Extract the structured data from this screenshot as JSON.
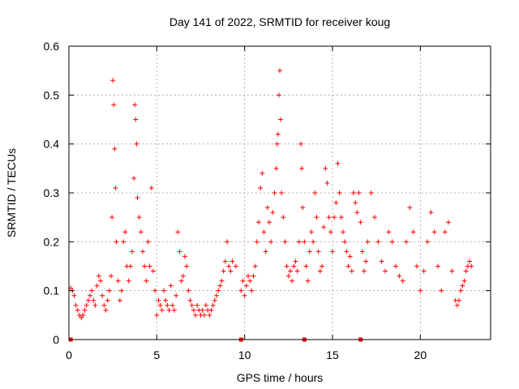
{
  "chart_data": {
    "type": "scatter",
    "title": "Day 141 of 2022, SRMTID for receiver koug",
    "xlabel": "GPS time / hours",
    "ylabel": "SRMTID / TECUs",
    "xlim": [
      0,
      24
    ],
    "ylim": [
      0,
      0.6
    ],
    "xticks": [
      "0",
      "5",
      "10",
      "15",
      "20"
    ],
    "yticks": [
      "0",
      "0.1",
      "0.2",
      "0.3",
      "0.4",
      "0.5",
      "0.6"
    ],
    "grid": true,
    "marker_color": "#ff0000",
    "series": [
      {
        "name": "SRMTID",
        "values": [
          [
            0.1,
            0.105
          ],
          [
            0.2,
            0.1
          ],
          [
            0.3,
            0.09
          ],
          [
            0.4,
            0.07
          ],
          [
            0.5,
            0.06
          ],
          [
            0.6,
            0.05
          ],
          [
            0.7,
            0.045
          ],
          [
            0.8,
            0.05
          ],
          [
            0.9,
            0.06
          ],
          [
            1.0,
            0.07
          ],
          [
            1.1,
            0.08
          ],
          [
            1.2,
            0.09
          ],
          [
            1.3,
            0.1
          ],
          [
            1.4,
            0.08
          ],
          [
            1.5,
            0.07
          ],
          [
            1.6,
            0.11
          ],
          [
            1.7,
            0.13
          ],
          [
            1.8,
            0.12
          ],
          [
            1.9,
            0.09
          ],
          [
            2.0,
            0.07
          ],
          [
            2.1,
            0.06
          ],
          [
            2.2,
            0.08
          ],
          [
            2.3,
            0.1
          ],
          [
            2.4,
            0.13
          ],
          [
            2.45,
            0.25
          ],
          [
            2.5,
            0.53
          ],
          [
            2.55,
            0.48
          ],
          [
            2.6,
            0.39
          ],
          [
            2.65,
            0.31
          ],
          [
            2.7,
            0.2
          ],
          [
            2.8,
            0.12
          ],
          [
            2.9,
            0.08
          ],
          [
            3.0,
            0.1
          ],
          [
            3.1,
            0.2
          ],
          [
            3.2,
            0.22
          ],
          [
            3.3,
            0.15
          ],
          [
            3.4,
            0.12
          ],
          [
            3.5,
            0.15
          ],
          [
            3.6,
            0.18
          ],
          [
            3.7,
            0.33
          ],
          [
            3.75,
            0.48
          ],
          [
            3.8,
            0.45
          ],
          [
            3.85,
            0.4
          ],
          [
            3.9,
            0.29
          ],
          [
            4.0,
            0.25
          ],
          [
            4.1,
            0.22
          ],
          [
            4.2,
            0.18
          ],
          [
            4.3,
            0.15
          ],
          [
            4.4,
            0.12
          ],
          [
            4.5,
            0.2
          ],
          [
            4.6,
            0.15
          ],
          [
            4.7,
            0.31
          ],
          [
            4.8,
            0.14
          ],
          [
            4.9,
            0.1
          ],
          [
            5.0,
            0.05
          ],
          [
            5.1,
            0.08
          ],
          [
            5.2,
            0.07
          ],
          [
            5.3,
            0.06
          ],
          [
            5.4,
            0.1
          ],
          [
            5.5,
            0.08
          ],
          [
            5.6,
            0.07
          ],
          [
            5.7,
            0.06
          ],
          [
            5.8,
            0.11
          ],
          [
            5.9,
            0.07
          ],
          [
            6.0,
            0.06
          ],
          [
            6.1,
            0.09
          ],
          [
            6.2,
            0.22
          ],
          [
            6.3,
            0.18
          ],
          [
            6.4,
            0.12
          ],
          [
            6.5,
            0.13
          ],
          [
            6.6,
            0.17
          ],
          [
            6.7,
            0.15
          ],
          [
            6.8,
            0.1
          ],
          [
            6.9,
            0.08
          ],
          [
            7.0,
            0.07
          ],
          [
            7.1,
            0.06
          ],
          [
            7.2,
            0.05
          ],
          [
            7.3,
            0.07
          ],
          [
            7.4,
            0.06
          ],
          [
            7.5,
            0.05
          ],
          [
            7.6,
            0.06
          ],
          [
            7.7,
            0.05
          ],
          [
            7.8,
            0.07
          ],
          [
            7.9,
            0.06
          ],
          [
            8.0,
            0.05
          ],
          [
            8.1,
            0.06
          ],
          [
            8.2,
            0.07
          ],
          [
            8.3,
            0.08
          ],
          [
            8.4,
            0.09
          ],
          [
            8.5,
            0.1
          ],
          [
            8.6,
            0.11
          ],
          [
            8.7,
            0.12
          ],
          [
            8.8,
            0.14
          ],
          [
            8.9,
            0.16
          ],
          [
            9.0,
            0.2
          ],
          [
            9.1,
            0.15
          ],
          [
            9.2,
            0.14
          ],
          [
            9.3,
            0.16
          ],
          [
            9.5,
            0.15
          ],
          [
            9.8,
            0.1
          ],
          [
            9.9,
            0.12
          ],
          [
            10.0,
            0.09
          ],
          [
            10.1,
            0.11
          ],
          [
            10.2,
            0.13
          ],
          [
            10.3,
            0.12
          ],
          [
            10.4,
            0.1
          ],
          [
            10.5,
            0.13
          ],
          [
            10.6,
            0.15
          ],
          [
            10.7,
            0.2
          ],
          [
            10.8,
            0.24
          ],
          [
            10.9,
            0.31
          ],
          [
            11.0,
            0.34
          ],
          [
            11.1,
            0.22
          ],
          [
            11.2,
            0.18
          ],
          [
            11.3,
            0.27
          ],
          [
            11.4,
            0.24
          ],
          [
            11.5,
            0.2
          ],
          [
            11.6,
            0.26
          ],
          [
            11.7,
            0.3
          ],
          [
            11.8,
            0.35
          ],
          [
            11.85,
            0.4
          ],
          [
            11.9,
            0.42
          ],
          [
            11.95,
            0.5
          ],
          [
            12.0,
            0.55
          ],
          [
            12.05,
            0.45
          ],
          [
            12.1,
            0.3
          ],
          [
            12.2,
            0.25
          ],
          [
            12.3,
            0.2
          ],
          [
            12.4,
            0.15
          ],
          [
            12.5,
            0.13
          ],
          [
            12.6,
            0.14
          ],
          [
            12.7,
            0.12
          ],
          [
            12.8,
            0.15
          ],
          [
            12.9,
            0.16
          ],
          [
            13.0,
            0.14
          ],
          [
            13.1,
            0.2
          ],
          [
            13.2,
            0.4
          ],
          [
            13.25,
            0.35
          ],
          [
            13.3,
            0.27
          ],
          [
            13.4,
            0.2
          ],
          [
            13.5,
            0.15
          ],
          [
            13.6,
            0.12
          ],
          [
            13.7,
            0.18
          ],
          [
            13.8,
            0.22
          ],
          [
            13.9,
            0.2
          ],
          [
            14.0,
            0.3
          ],
          [
            14.1,
            0.25
          ],
          [
            14.2,
            0.18
          ],
          [
            14.3,
            0.14
          ],
          [
            14.4,
            0.15
          ],
          [
            14.5,
            0.23
          ],
          [
            14.6,
            0.35
          ],
          [
            14.7,
            0.32
          ],
          [
            14.8,
            0.25
          ],
          [
            14.9,
            0.22
          ],
          [
            15.0,
            0.18
          ],
          [
            15.1,
            0.25
          ],
          [
            15.2,
            0.28
          ],
          [
            15.3,
            0.36
          ],
          [
            15.4,
            0.3
          ],
          [
            15.5,
            0.25
          ],
          [
            15.6,
            0.22
          ],
          [
            15.7,
            0.2
          ],
          [
            15.8,
            0.18
          ],
          [
            15.9,
            0.15
          ],
          [
            16.0,
            0.17
          ],
          [
            16.1,
            0.14
          ],
          [
            16.2,
            0.3
          ],
          [
            16.3,
            0.28
          ],
          [
            16.4,
            0.26
          ],
          [
            16.5,
            0.3
          ],
          [
            16.6,
            0.24
          ],
          [
            16.7,
            0.18
          ],
          [
            16.8,
            0.14
          ],
          [
            16.9,
            0.16
          ],
          [
            17.0,
            0.2
          ],
          [
            17.2,
            0.3
          ],
          [
            17.4,
            0.25
          ],
          [
            17.6,
            0.2
          ],
          [
            17.8,
            0.16
          ],
          [
            18.0,
            0.14
          ],
          [
            18.2,
            0.22
          ],
          [
            18.4,
            0.2
          ],
          [
            18.6,
            0.15
          ],
          [
            18.8,
            0.13
          ],
          [
            19.0,
            0.12
          ],
          [
            19.2,
            0.2
          ],
          [
            19.4,
            0.27
          ],
          [
            19.6,
            0.22
          ],
          [
            19.8,
            0.15
          ],
          [
            20.0,
            0.1
          ],
          [
            20.2,
            0.14
          ],
          [
            20.4,
            0.2
          ],
          [
            20.6,
            0.26
          ],
          [
            20.8,
            0.22
          ],
          [
            21.0,
            0.15
          ],
          [
            21.2,
            0.1
          ],
          [
            21.4,
            0.22
          ],
          [
            21.6,
            0.24
          ],
          [
            21.8,
            0.14
          ],
          [
            22.0,
            0.08
          ],
          [
            22.1,
            0.07
          ],
          [
            22.2,
            0.08
          ],
          [
            22.3,
            0.1
          ],
          [
            22.4,
            0.11
          ],
          [
            22.5,
            0.12
          ],
          [
            22.6,
            0.14
          ],
          [
            22.7,
            0.15
          ],
          [
            22.8,
            0.16
          ],
          [
            22.9,
            0.15
          ]
        ]
      }
    ],
    "baseline_markers": [
      0.1,
      9.8,
      13.4,
      16.6
    ]
  }
}
